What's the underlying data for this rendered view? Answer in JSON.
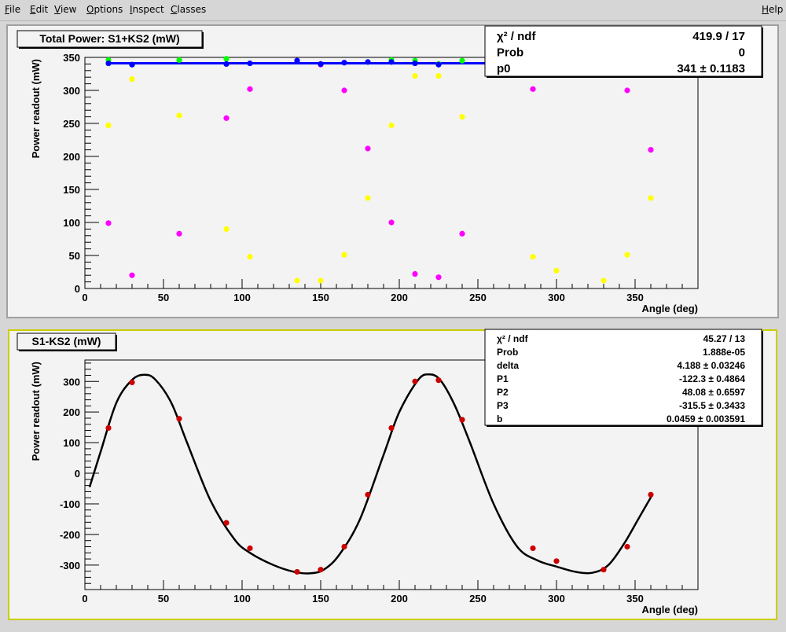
{
  "menubar": {
    "items": [
      {
        "label": "File",
        "underline": "F"
      },
      {
        "label": "Edit",
        "underline": "E"
      },
      {
        "label": "View",
        "underline": "V"
      },
      {
        "label": "Options",
        "underline": "O"
      },
      {
        "label": "Inspect",
        "underline": "I"
      },
      {
        "label": "Classes",
        "underline": "C"
      }
    ],
    "help": {
      "label": "Help",
      "underline": "H"
    }
  },
  "colors": {
    "frame_bg": "#f3f3f3",
    "border_top": "#a0a0a0",
    "border_bottom_active": "#cccc00",
    "fit_top": "#0000ff",
    "fit_bottom": "#000000",
    "points_bottom": "#cc0000"
  },
  "chart_data": [
    {
      "type": "scatter",
      "title": "Total Power: S1+KS2 (mW)",
      "xlabel": "Angle (deg)",
      "ylabel": "Power readout (mW)",
      "xlim": [
        0,
        390
      ],
      "ylim": [
        0,
        350
      ],
      "xticks": [
        0,
        50,
        100,
        150,
        200,
        250,
        300,
        350
      ],
      "yticks": [
        0,
        50,
        100,
        150,
        200,
        250,
        300,
        350
      ],
      "series": [
        {
          "color": "#ffff00",
          "x": [
            15,
            15,
            30,
            60,
            90,
            105,
            135,
            150,
            165,
            180,
            195,
            210,
            225,
            240,
            285,
            300,
            330,
            345,
            360
          ],
          "y": [
            247,
            247,
            317,
            262,
            90,
            48,
            12,
            12,
            51,
            137,
            247,
            322,
            322,
            260,
            48,
            27,
            12,
            51,
            137
          ]
        },
        {
          "color": "#ff00ff",
          "x": [
            15,
            30,
            60,
            90,
            105,
            135,
            150,
            165,
            180,
            195,
            210,
            225,
            240,
            285,
            300,
            330,
            345,
            360
          ],
          "y": [
            99,
            20,
            83,
            258,
            302,
            345,
            339,
            300,
            212,
            100,
            22,
            17,
            83,
            302,
            324,
            335,
            300,
            210
          ]
        },
        {
          "color": "#00ff00",
          "x": [
            15,
            30,
            60,
            90,
            195,
            210,
            225,
            240,
            285,
            330,
            360
          ],
          "y": [
            346,
            339,
            346,
            348,
            346,
            345,
            340,
            345,
            350,
            347,
            346
          ]
        },
        {
          "color": "#0000ff",
          "x": [
            15,
            30,
            90,
            105,
            135,
            150,
            165,
            180,
            195,
            210,
            225
          ],
          "y": [
            341,
            339,
            340,
            341,
            345,
            340,
            342,
            343,
            343,
            341,
            339
          ]
        }
      ],
      "fit": {
        "type": "constant",
        "y": 341,
        "x_range": [
          15,
          360
        ],
        "color": "#0000ff"
      },
      "stats": [
        {
          "label": "χ² / ndf",
          "value": "419.9 / 17"
        },
        {
          "label": "Prob",
          "value": "0"
        },
        {
          "label": "p0",
          "value": "341",
          "pm": "±",
          "err": "0.1183"
        }
      ]
    },
    {
      "type": "scatter",
      "title": "S1-KS2 (mW)",
      "xlabel": "Angle (deg)",
      "ylabel": "Power readout (mW)",
      "xlim": [
        0,
        390
      ],
      "ylim": [
        -380,
        370
      ],
      "xticks": [
        0,
        50,
        100,
        150,
        200,
        250,
        300,
        350
      ],
      "yticks": [
        -300,
        -200,
        -100,
        0,
        100,
        200,
        300
      ],
      "series": [
        {
          "color": "#cc0000",
          "x": [
            15,
            30,
            60,
            90,
            105,
            135,
            150,
            165,
            180,
            195,
            210,
            225,
            240,
            285,
            300,
            330,
            345,
            360
          ],
          "y": [
            148,
            297,
            178,
            -162,
            -245,
            -322,
            -315,
            -240,
            -70,
            148,
            300,
            304,
            175,
            -245,
            -287,
            -315,
            -240,
            -70
          ]
        }
      ],
      "fit": {
        "type": "curve",
        "color": "#000000",
        "x": [
          3,
          10,
          20,
          30,
          38,
          45,
          55,
          65,
          80,
          95,
          105,
          120,
          133,
          143,
          152,
          162,
          175,
          190,
          200,
          212,
          219,
          226,
          235,
          245,
          260,
          275,
          288,
          300,
          312,
          323,
          333,
          343,
          352,
          361
        ],
        "y": [
          -45,
          70,
          230,
          305,
          322,
          305,
          230,
          100,
          -90,
          -215,
          -260,
          -300,
          -322,
          -327,
          -315,
          -265,
          -150,
          60,
          200,
          305,
          323,
          305,
          225,
          100,
          -100,
          -240,
          -285,
          -305,
          -322,
          -325,
          -300,
          -230,
          -150,
          -70
        ]
      },
      "stats": [
        {
          "label": "χ² / ndf",
          "value": "45.27 / 13"
        },
        {
          "label": "Prob",
          "value": "1.888e-05"
        },
        {
          "label": "delta",
          "value": "4.188",
          "pm": "±",
          "err": "0.03246"
        },
        {
          "label": "P1",
          "value": "-122.3",
          "pm": "±",
          "err": "0.4864"
        },
        {
          "label": "P2",
          "value": "48.08",
          "pm": "±",
          "err": "0.6597"
        },
        {
          "label": "P3",
          "value": "-315.5",
          "pm": "±",
          "err": "0.3433"
        },
        {
          "label": "b",
          "value": "0.0459",
          "pm": "±",
          "err": "0.003591"
        }
      ]
    }
  ]
}
